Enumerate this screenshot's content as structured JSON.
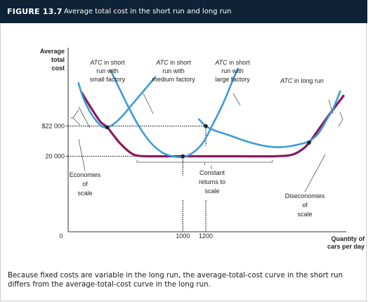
{
  "figure": {
    "number": "FIGURE 13.7",
    "title": "Average total cost in the short run and long run",
    "caption": "Because fixed costs are variable in the long run, the average-total-cost curve in the short run differs from the average-total-cost curve in the long run."
  },
  "chart_data": {
    "type": "line",
    "ylabel": [
      "Average",
      "total",
      "cost"
    ],
    "xlabel": [
      "Quantity of",
      "cars per day"
    ],
    "origin_label": "0",
    "x_ticks": [
      {
        "value": 1000,
        "label": "1000"
      },
      {
        "value": 1200,
        "label": "1200"
      }
    ],
    "y_ticks": [
      {
        "value": 22000,
        "label": "$22 000"
      },
      {
        "value": 20000,
        "label": "20 000"
      }
    ],
    "xlim": [
      0,
      2400
    ],
    "ylim": [
      15000,
      27000
    ],
    "colors": {
      "short_run": "#3d9bd6",
      "long_run": "#8b1a5a",
      "guides": "#222222"
    },
    "series": [
      {
        "key": "atc_small",
        "name_lines": [
          {
            "text": "ATC",
            "italic": true,
            "after": " in short"
          },
          {
            "text": "run with"
          },
          {
            "text": "small factory"
          }
        ],
        "color": "#3d9bd6",
        "points": [
          [
            90,
            24850
          ],
          [
            130,
            23900
          ],
          [
            190,
            22950
          ],
          [
            250,
            22300
          ],
          [
            300,
            21950
          ],
          [
            340,
            21920
          ],
          [
            400,
            22150
          ],
          [
            470,
            22650
          ],
          [
            560,
            23450
          ],
          [
            660,
            24350
          ],
          [
            760,
            25250
          ]
        ]
      },
      {
        "key": "atc_medium",
        "name_lines": [
          {
            "text": "ATC",
            "italic": true,
            "after": " in short"
          },
          {
            "text": "run with"
          },
          {
            "text": "medium factory"
          }
        ],
        "color": "#3d9bd6",
        "points": [
          [
            370,
            25700
          ],
          [
            430,
            24750
          ],
          [
            520,
            23350
          ],
          [
            620,
            21950
          ],
          [
            720,
            20900
          ],
          [
            820,
            20250
          ],
          [
            920,
            19980
          ],
          [
            1000,
            19950
          ],
          [
            1080,
            20200
          ],
          [
            1160,
            20750
          ],
          [
            1210,
            21350
          ],
          [
            1260,
            22100
          ],
          [
            1320,
            23000
          ],
          [
            1380,
            24000
          ],
          [
            1430,
            24950
          ],
          [
            1480,
            25800
          ]
        ]
      },
      {
        "key": "atc_large",
        "name_lines": [
          {
            "text": "ATC",
            "italic": true,
            "after": " in short"
          },
          {
            "text": "run with"
          },
          {
            "text": "large factory"
          }
        ],
        "color": "#3d9bd6",
        "points": [
          [
            1140,
            22450
          ],
          [
            1200,
            22000
          ],
          [
            1280,
            21700
          ],
          [
            1400,
            21400
          ],
          [
            1550,
            21000
          ],
          [
            1700,
            20700
          ],
          [
            1820,
            20600
          ],
          [
            1920,
            20650
          ],
          [
            2020,
            20800
          ],
          [
            2100,
            21000
          ],
          [
            2180,
            21500
          ],
          [
            2260,
            22500
          ],
          [
            2300,
            23000
          ],
          [
            2340,
            23700
          ],
          [
            2370,
            24300
          ]
        ]
      },
      {
        "key": "atc_long_run",
        "name_lines": [
          {
            "text": "ATC",
            "italic": true,
            "after": " in long run"
          }
        ],
        "color": "#8b1a5a",
        "points": [
          [
            120,
            24200
          ],
          [
            200,
            23200
          ],
          [
            280,
            22300
          ],
          [
            340,
            21920
          ],
          [
            400,
            21350
          ],
          [
            460,
            20800
          ],
          [
            540,
            20250
          ],
          [
            600,
            20050
          ],
          [
            700,
            20000
          ],
          [
            1000,
            20000
          ],
          [
            1200,
            20000
          ],
          [
            1500,
            20000
          ],
          [
            1800,
            20000
          ],
          [
            1950,
            20100
          ],
          [
            2040,
            20450
          ],
          [
            2100,
            20900
          ],
          [
            2200,
            21950
          ],
          [
            2300,
            23000
          ],
          [
            2400,
            24000
          ]
        ]
      }
    ],
    "marked_points": [
      [
        340,
        21920
      ],
      [
        1000,
        20000
      ],
      [
        1200,
        22000
      ],
      [
        2100,
        20900
      ]
    ],
    "annotations": [
      {
        "key": "economies",
        "lines": [
          "Economies",
          "of",
          "scale"
        ]
      },
      {
        "key": "constant",
        "lines": [
          "Constant",
          "returns to",
          "scale"
        ]
      },
      {
        "key": "diseconomies",
        "lines": [
          "Diseconomies",
          "of",
          "scale"
        ]
      }
    ]
  }
}
